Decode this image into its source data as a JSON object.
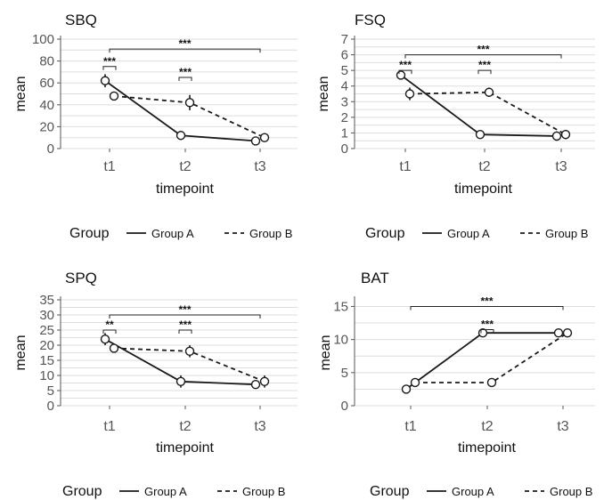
{
  "legend": {
    "title": "Group",
    "entries": [
      {
        "label": "Group A",
        "dash": "solid"
      },
      {
        "label": "Group B",
        "dash": "dashed"
      }
    ]
  },
  "colors": {
    "line": "#1a1a1a",
    "grid": "#dddddd",
    "axis": "#555555",
    "marker_fill": "#ffffff"
  },
  "chart_data": [
    {
      "type": "line",
      "title": "SBQ",
      "xlabel": "timepoint",
      "ylabel": "mean",
      "categories": [
        "t1",
        "t2",
        "t3"
      ],
      "ylim": [
        0,
        100
      ],
      "yticks": [
        0,
        20,
        40,
        60,
        80,
        100
      ],
      "grid": true,
      "series": [
        {
          "name": "Group A",
          "values": [
            62,
            12,
            7
          ],
          "err": [
            6,
            2,
            2
          ]
        },
        {
          "name": "Group B",
          "values": [
            48,
            42,
            10
          ],
          "err": [
            3,
            7,
            4
          ]
        }
      ],
      "annotations": [
        {
          "text": "***",
          "from": "t1",
          "to": "t1",
          "at": 75
        },
        {
          "text": "***",
          "from": "t2",
          "to": "t2",
          "at": 65
        },
        {
          "text": "***",
          "from": "t1",
          "to": "t3",
          "at": 91
        }
      ]
    },
    {
      "type": "line",
      "title": "FSQ",
      "xlabel": "timepoint",
      "ylabel": "mean",
      "categories": [
        "t1",
        "t2",
        "t3"
      ],
      "ylim": [
        0,
        7
      ],
      "yticks": [
        0,
        1,
        2,
        3,
        4,
        5,
        6,
        7
      ],
      "grid": true,
      "series": [
        {
          "name": "Group A",
          "values": [
            4.7,
            0.9,
            0.8
          ],
          "err": [
            0.2,
            0.1,
            0.3
          ]
        },
        {
          "name": "Group B",
          "values": [
            3.5,
            3.6,
            0.9
          ],
          "err": [
            0.4,
            0.3,
            0.3
          ]
        }
      ],
      "annotations": [
        {
          "text": "***",
          "from": "t1",
          "to": "t1",
          "at": 5.0
        },
        {
          "text": "***",
          "from": "t2",
          "to": "t2",
          "at": 5.0
        },
        {
          "text": "***",
          "from": "t1",
          "to": "t3",
          "at": 6.0
        }
      ]
    },
    {
      "type": "line",
      "title": "SPQ",
      "xlabel": "timepoint",
      "ylabel": "mean",
      "categories": [
        "t1",
        "t2",
        "t3"
      ],
      "ylim": [
        0,
        35
      ],
      "yticks": [
        0,
        5,
        10,
        15,
        20,
        25,
        30,
        35
      ],
      "grid": true,
      "series": [
        {
          "name": "Group A",
          "values": [
            22,
            8,
            7
          ],
          "err": [
            2,
            2,
            1
          ]
        },
        {
          "name": "Group B",
          "values": [
            19,
            18,
            8
          ],
          "err": [
            1,
            2,
            2
          ]
        }
      ],
      "annotations": [
        {
          "text": "**",
          "from": "t1",
          "to": "t1",
          "at": 25
        },
        {
          "text": "***",
          "from": "t2",
          "to": "t2",
          "at": 25
        },
        {
          "text": "***",
          "from": "t1",
          "to": "t3",
          "at": 30
        }
      ]
    },
    {
      "type": "line",
      "title": "BAT",
      "xlabel": "timepoint",
      "ylabel": "mean",
      "categories": [
        "t1",
        "t2",
        "t3"
      ],
      "ylim": [
        0,
        16
      ],
      "yticks": [
        0,
        5,
        10,
        15
      ],
      "grid": true,
      "series": [
        {
          "name": "Group A",
          "values": [
            2.5,
            11,
            11
          ],
          "err": [
            0.3,
            0.4,
            0.2
          ]
        },
        {
          "name": "Group B",
          "values": [
            3.5,
            3.5,
            11
          ],
          "err": [
            0.3,
            0.3,
            0.2
          ]
        }
      ],
      "annotations": [
        {
          "text": "***",
          "from": "t2",
          "to": "t2",
          "at": 11.5
        },
        {
          "text": "***",
          "from": "t1",
          "to": "t3",
          "at": 15
        }
      ]
    }
  ]
}
